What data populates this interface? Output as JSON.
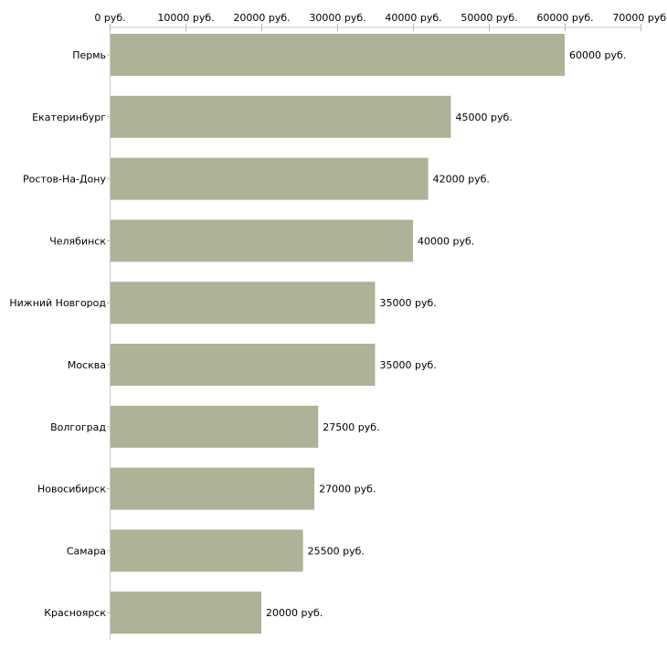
{
  "chart_data": {
    "type": "bar",
    "orientation": "horizontal",
    "title": "",
    "xlabel": "",
    "ylabel": "",
    "categories": [
      "Пермь",
      "Екатеринбург",
      "Ростов-На-Дону",
      "Челябинск",
      "Нижний Новгород",
      "Москва",
      "Волгоград",
      "Новосибирск",
      "Самара",
      "Красноярск"
    ],
    "values": [
      60000,
      45000,
      42000,
      40000,
      35000,
      35000,
      27500,
      27000,
      25500,
      20000
    ],
    "data_labels": [
      "60000 руб.",
      "45000 руб.",
      "42000 руб.",
      "40000 руб.",
      "35000 руб.",
      "35000 руб.",
      "27500 руб.",
      "27000 руб.",
      "25500 руб.",
      "20000 руб."
    ],
    "xlim": [
      0,
      70000
    ],
    "x_ticks": [
      0,
      10000,
      20000,
      30000,
      40000,
      50000,
      60000,
      70000
    ],
    "x_tick_labels": [
      "0 руб.",
      "10000 руб.",
      "20000 руб.",
      "30000 руб.",
      "40000 руб.",
      "50000 руб.",
      "60000 руб.",
      "70000 руб."
    ],
    "x_axis_position": "top",
    "grid": false,
    "bar_color": "#acb396",
    "axis_color": "#c8c8c8",
    "tick_color": "#b5bc8f"
  }
}
